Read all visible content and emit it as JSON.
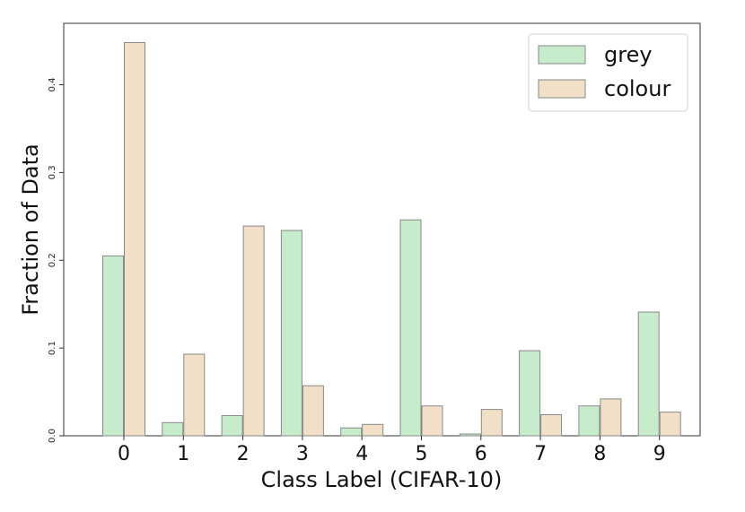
{
  "chart_data": {
    "type": "bar",
    "categories": [
      "0",
      "1",
      "2",
      "3",
      "4",
      "5",
      "6",
      "7",
      "8",
      "9"
    ],
    "series": [
      {
        "name": "grey",
        "color": "#c6eccb",
        "values": [
          0.205,
          0.015,
          0.023,
          0.234,
          0.009,
          0.246,
          0.002,
          0.097,
          0.034,
          0.141
        ]
      },
      {
        "name": "colour",
        "color": "#f2dfc8",
        "values": [
          0.448,
          0.093,
          0.239,
          0.057,
          0.013,
          0.034,
          0.03,
          0.024,
          0.042,
          0.027
        ]
      }
    ],
    "xlabel": "Class Label (CIFAR-10)",
    "ylabel": "Fraction of Data",
    "ylim": [
      0,
      0.47
    ],
    "yticks": [
      "0.0",
      "0.1",
      "0.2",
      "0.3",
      "0.4"
    ],
    "grid": false,
    "legend_position": "top-right",
    "edge_color": "#888888"
  }
}
